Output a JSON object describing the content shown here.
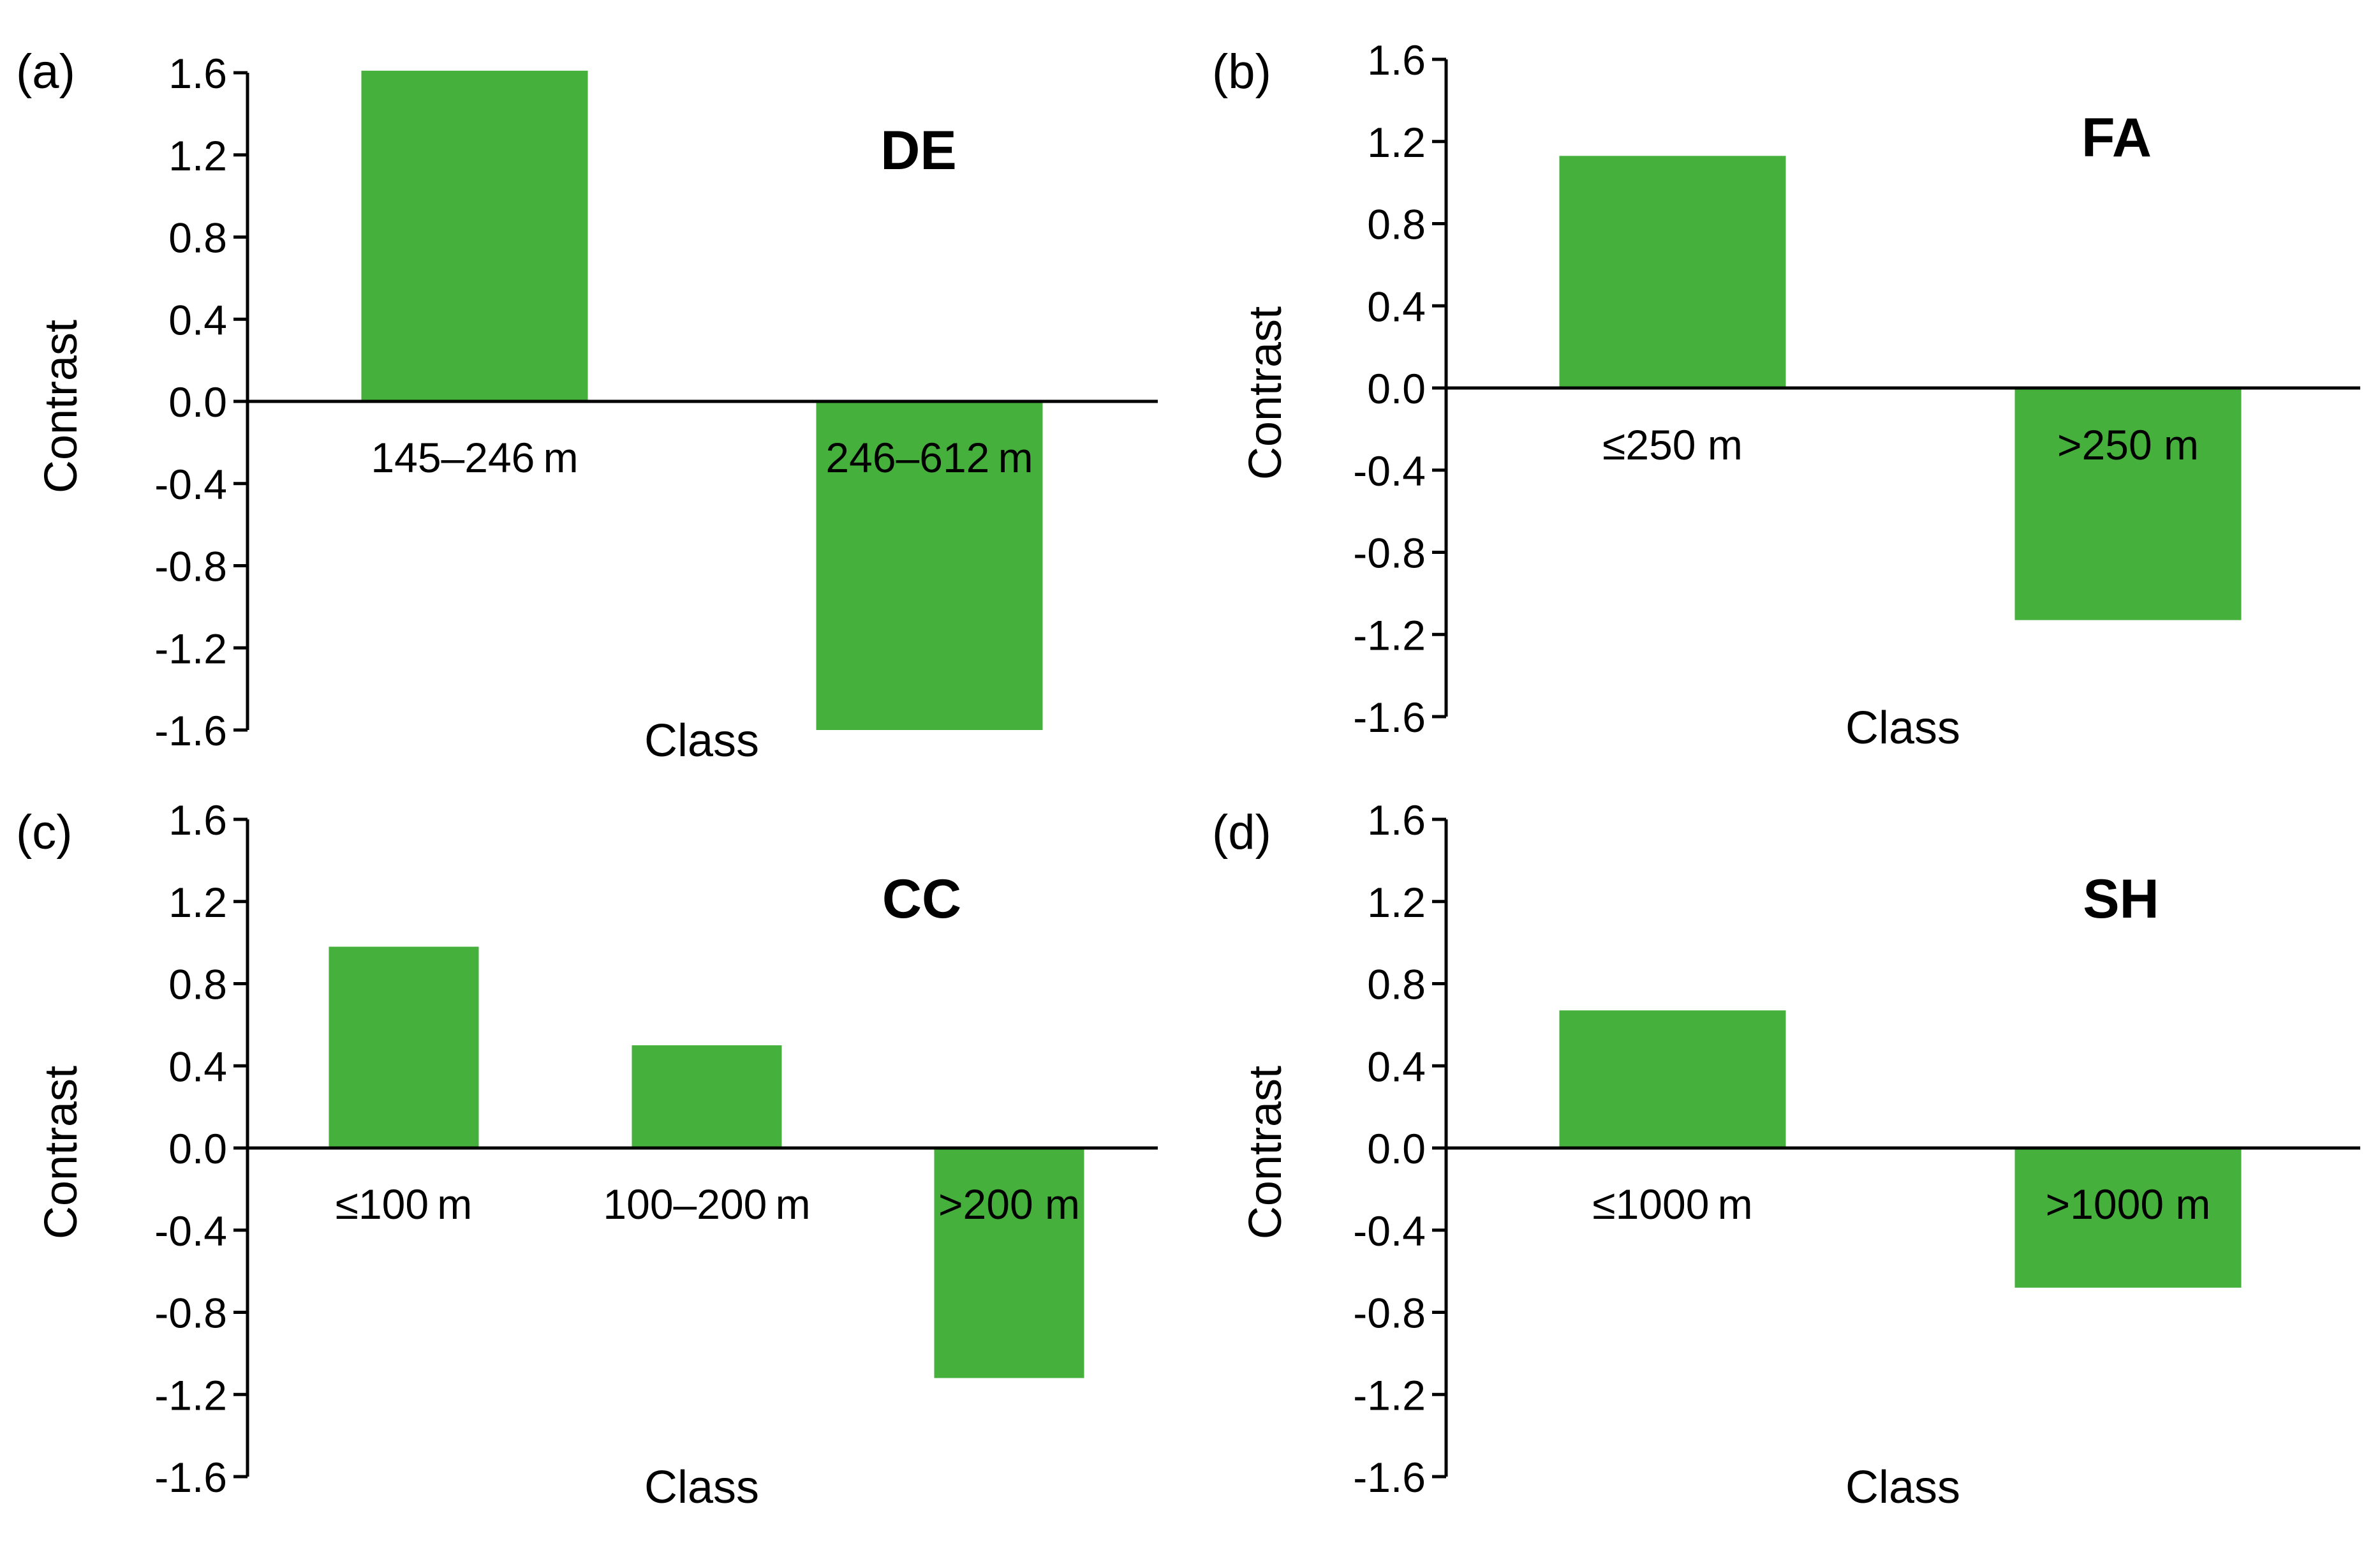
{
  "chart_data": [
    {
      "panel_label": "(a)",
      "title": "DE",
      "type": "bar",
      "xlabel": "Class",
      "ylabel": "Contrast",
      "ylim": [
        -1.6,
        1.6
      ],
      "ytick_labels": [
        "1.6",
        "1.2",
        "0.8",
        "0.4",
        "0.0",
        "-0.4",
        "-0.8",
        "-1.2",
        "-1.6"
      ],
      "categories": [
        "145–246 m",
        "246–612 m"
      ],
      "values": [
        1.61,
        -1.6
      ],
      "bar_color": "#46B03C",
      "grid": false
    },
    {
      "panel_label": "(b)",
      "title": "FA",
      "type": "bar",
      "xlabel": "Class",
      "ylabel": "Contrast",
      "ylim": [
        -1.6,
        1.6
      ],
      "ytick_labels": [
        "1.6",
        "1.2",
        "0.8",
        "0.4",
        "0.0",
        "-0.4",
        "-0.8",
        "-1.2",
        "-1.6"
      ],
      "categories": [
        "≤250 m",
        ">250 m"
      ],
      "values": [
        1.13,
        -1.13
      ],
      "bar_color": "#46B03C",
      "grid": false
    },
    {
      "panel_label": "(c)",
      "title": "CC",
      "type": "bar",
      "xlabel": "Class",
      "ylabel": "Contrast",
      "ylim": [
        -1.6,
        1.6
      ],
      "ytick_labels": [
        "1.6",
        "1.2",
        "0.8",
        "0.4",
        "0.0",
        "-0.4",
        "-0.8",
        "-1.2",
        "-1.6"
      ],
      "categories": [
        "≤100 m",
        "100–200 m",
        ">200 m"
      ],
      "values": [
        0.98,
        0.5,
        -1.12
      ],
      "bar_color": "#46B03C",
      "grid": false
    },
    {
      "panel_label": "(d)",
      "title": "SH",
      "type": "bar",
      "xlabel": "Class",
      "ylabel": "Contrast",
      "ylim": [
        -1.6,
        1.6
      ],
      "ytick_labels": [
        "1.6",
        "1.2",
        "0.8",
        "0.4",
        "0.0",
        "-0.4",
        "-0.8",
        "-1.2",
        "-1.6"
      ],
      "categories": [
        "≤1000 m",
        ">1000 m"
      ],
      "values": [
        0.67,
        -0.68
      ],
      "bar_color": "#46B03C",
      "grid": false
    }
  ]
}
